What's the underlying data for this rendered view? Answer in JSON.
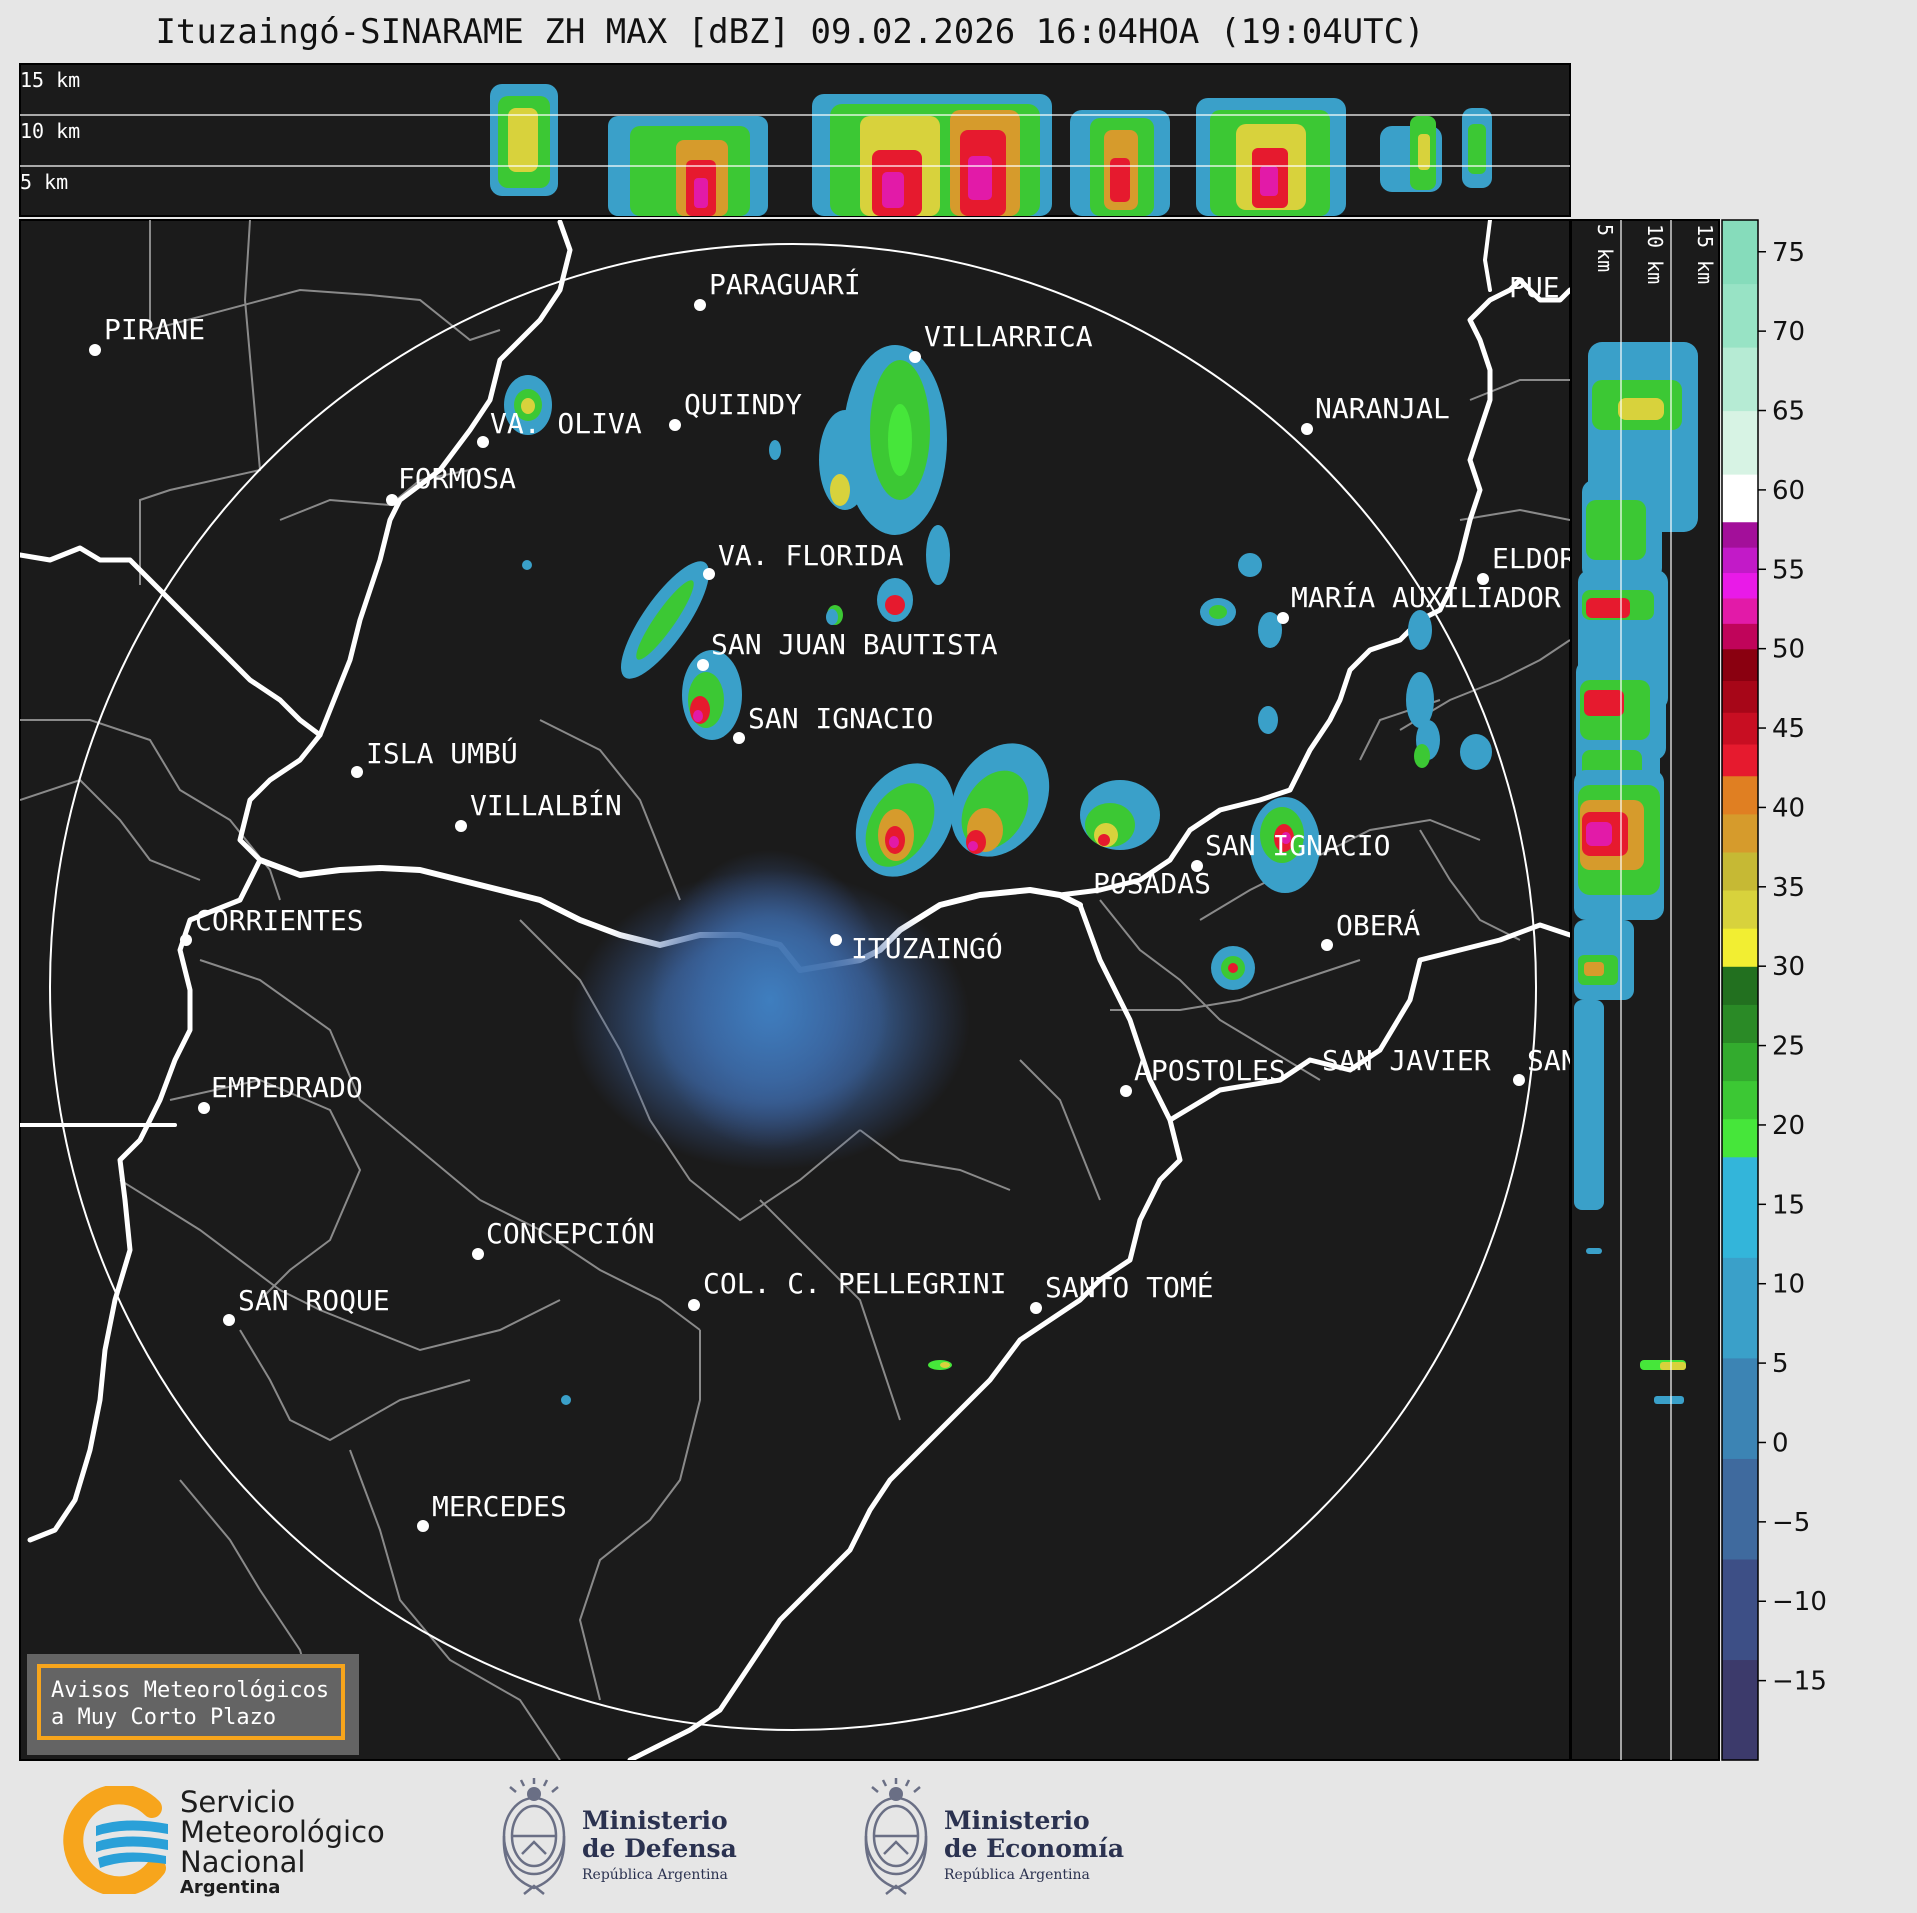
{
  "header": {
    "title": "Ituzaingó-SINARAME ZH MAX [dBZ] 09.02.2026 16:04HOA (19:04UTC)"
  },
  "top_profile": {
    "height_labels": [
      "15 km",
      "10 km",
      "5 km"
    ]
  },
  "side_profile": {
    "height_labels": [
      "5 km",
      "10 km",
      "15 km"
    ]
  },
  "colorbar": {
    "unit": "dBZ",
    "min": -20,
    "max": 77,
    "tick_labels": [
      "75",
      "70",
      "65",
      "60",
      "55",
      "50",
      "45",
      "40",
      "35",
      "30",
      "25",
      "20",
      "15",
      "10",
      "5",
      "0",
      "−5",
      "−10",
      "−15"
    ],
    "bands": [
      {
        "from": -20,
        "to": 18,
        "stops": [
          "#3c3a6b",
          "#3d4f86",
          "#3f6a9e",
          "#3c84b4",
          "#3aa0c9",
          "#33b5da"
        ]
      },
      {
        "from": 18,
        "to": 30,
        "stops": [
          "#46e63a",
          "#3cc834",
          "#33ab2e",
          "#2a8a26",
          "#22701f"
        ]
      },
      {
        "from": 30,
        "to": 42,
        "stops": [
          "#f2ee32",
          "#d8d23c",
          "#c6b934",
          "#d69b2c",
          "#e07f22"
        ]
      },
      {
        "from": 42,
        "to": 50,
        "stops": [
          "#e61a2e",
          "#c80e22",
          "#a70618",
          "#8a0010"
        ]
      },
      {
        "from": 50,
        "to": 58,
        "stops": [
          "#c0045a",
          "#e21aa8",
          "#e91ae8",
          "#c21ac8",
          "#a30f9a"
        ]
      },
      {
        "from": 58,
        "to": 61,
        "stops": [
          "#ffffff"
        ]
      },
      {
        "from": 61,
        "to": 77,
        "stops": [
          "#d7f3e4",
          "#b6ebd4",
          "#98e3c5",
          "#86dcbb"
        ]
      }
    ]
  },
  "map": {
    "radar_site": "ITUZAINGÓ",
    "colors": {
      "background": "#1b1b1b",
      "rivers": "#ffffff",
      "borders": "#8a8a8a",
      "range_ring": "#ffffff"
    },
    "places": [
      "PARAGUARÍ",
      "PIRANE",
      "VILLARRICA",
      "QUIINDY",
      "VA. OLIVA",
      "FORMOSA",
      "NARANJAL",
      "VA. FLORIDA",
      "ELDOR",
      "MARÍA AUXILIADOR",
      "SAN JUAN BAUTISTA",
      "SAN IGNACIO",
      "ISLA UMBÚ",
      "VILLALBÍN",
      "SAN IGNACIO",
      "POSADAS",
      "CORRIENTES",
      "ITUZAINGÓ",
      "OBERÁ",
      "EMPEDRADO",
      "APOSTOLES",
      "SAN JAVIER",
      "SAN",
      "CONCEPCIÓN",
      "COL. C. PELLEGRINI",
      "SANTO TOMÉ",
      "SAN ROQUE",
      "MERCEDES",
      "PUE"
    ]
  },
  "notice": {
    "line1": "Avisos Meteorológicos",
    "line2": "a Muy Corto Plazo"
  },
  "footer": {
    "smn": {
      "line1": "Servicio",
      "line2": "Meteorológico",
      "line3": "Nacional",
      "line4": "Argentina",
      "colors": {
        "orange": "#f7a51c",
        "blue": "#2aa0d8"
      }
    },
    "defensa": {
      "line1": "Ministerio",
      "line2": "de Defensa",
      "line3": "República Argentina"
    },
    "economia": {
      "line1": "Ministerio",
      "line2": "de Economía",
      "line3": "República Argentina"
    }
  }
}
